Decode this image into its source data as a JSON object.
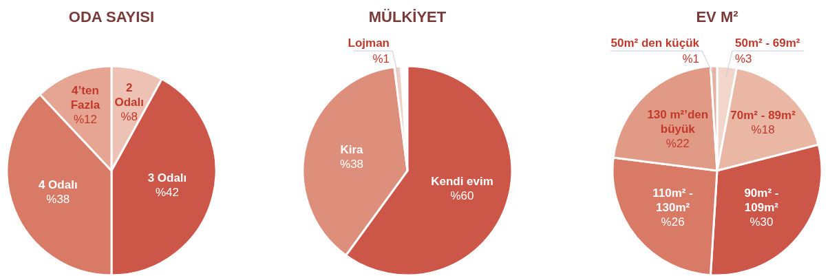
{
  "chart_data": [
    {
      "type": "pie",
      "title": "ODA SAYISI",
      "categories": [
        "2 Odalı",
        "3 Odalı",
        "4 Odalı",
        "4’ten Fazla"
      ],
      "values": [
        8,
        42,
        38,
        12
      ],
      "value_labels": [
        "%8",
        "%42",
        "%38",
        "%12"
      ],
      "colors": [
        "#edc1b3",
        "#cc5749",
        "#d97a67",
        "#e6a593"
      ]
    },
    {
      "type": "pie",
      "title": "MÜLKİYET",
      "categories": [
        "Kendi evim",
        "Kira",
        "Lojman"
      ],
      "values": [
        60,
        38,
        1
      ],
      "value_labels": [
        "%60",
        "%38",
        "%1"
      ],
      "colors": [
        "#cc5749",
        "#de8f7c",
        "#f0d0c5"
      ]
    },
    {
      "type": "pie",
      "title": "EV M²",
      "categories": [
        "50m² - 69m²",
        "70m² - 89m²",
        "90m² - 109m²",
        "110m² - 130m²",
        "130 m²’den büyük",
        "50m² den küçük"
      ],
      "values": [
        3,
        18,
        30,
        26,
        22,
        1
      ],
      "value_labels": [
        "%3",
        "%18",
        "%30",
        "%26",
        "%22",
        "%1"
      ],
      "colors": [
        "#f2d6cc",
        "#eab7a5",
        "#cc5749",
        "#d97a67",
        "#e09a86",
        "#e8b0a0"
      ]
    }
  ]
}
